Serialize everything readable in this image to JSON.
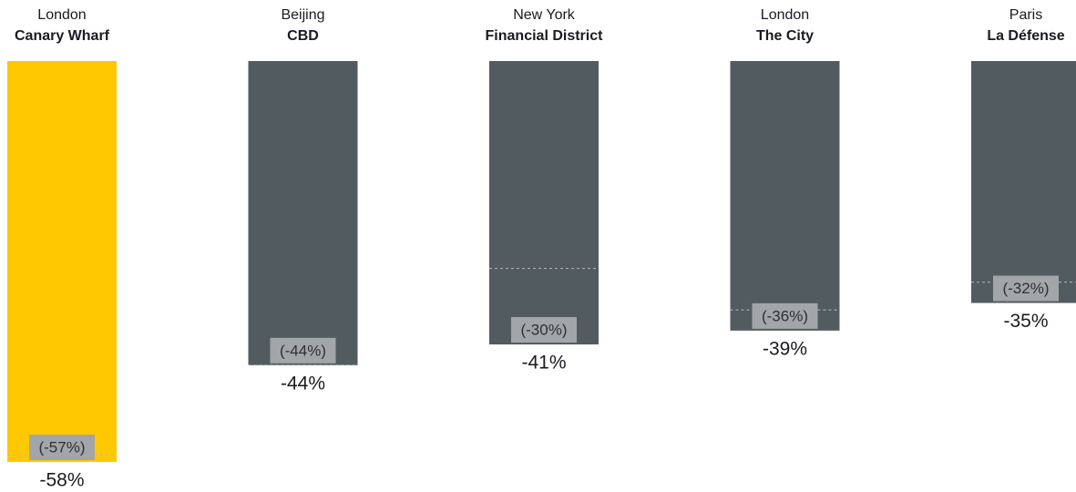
{
  "chart_data": {
    "type": "bar",
    "categories": [
      {
        "city": "London",
        "district": "Canary Wharf"
      },
      {
        "city": "Beijing",
        "district": "CBD"
      },
      {
        "city": "New York",
        "district": "Financial District"
      },
      {
        "city": "London",
        "district": "The City"
      },
      {
        "city": "Paris",
        "district": "La Défense"
      }
    ],
    "values": [
      -58,
      -44,
      -41,
      -39,
      -35
    ],
    "value_labels": [
      "-58%",
      "-44%",
      "-41%",
      "-39%",
      "-35%"
    ],
    "colors": [
      "#ffc800",
      "#525b60",
      "#525b60",
      "#525b60",
      "#525b60"
    ],
    "previous": [
      -57,
      -44,
      -30,
      -36,
      -32
    ],
    "previous_labels": [
      "(-57%)",
      "(-44%)",
      "(-30%)",
      "(-36%)",
      "(-32%)"
    ],
    "ylim": [
      -58,
      0
    ]
  }
}
